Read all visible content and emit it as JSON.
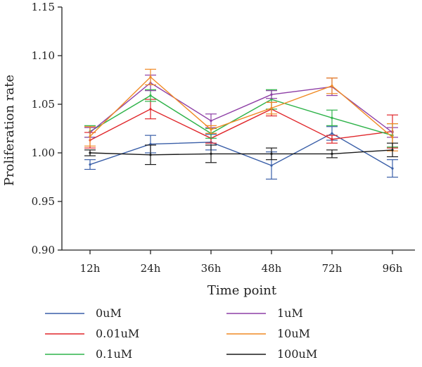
{
  "chart_data": {
    "type": "line",
    "xlabel": "Time point",
    "ylabel": "Proliferation rate",
    "ylim": [
      0.9,
      1.15
    ],
    "yticks": [
      "0.90",
      "0.95",
      "1.00",
      "1.05",
      "1.10",
      "1.15"
    ],
    "categories": [
      "12h",
      "24h",
      "36h",
      "48h",
      "72h",
      "96h"
    ],
    "error_bars": true,
    "grid": false,
    "legend_position": "bottom",
    "series": [
      {
        "name": "0uM",
        "color": "#3a5fa8",
        "values": [
          0.988,
          1.009,
          1.011,
          0.987,
          1.02,
          0.984
        ],
        "errors": [
          0.005,
          0.009,
          0.008,
          0.014,
          0.007,
          0.009
        ]
      },
      {
        "name": "0.01uM",
        "color": "#e0262a",
        "values": [
          1.013,
          1.045,
          1.015,
          1.045,
          1.014,
          1.022
        ],
        "errors": [
          0.008,
          0.01,
          0.005,
          0.007,
          0.004,
          0.017
        ]
      },
      {
        "name": "0.1uM",
        "color": "#2fb34a",
        "values": [
          1.022,
          1.059,
          1.02,
          1.055,
          1.036,
          1.018
        ],
        "errors": [
          0.006,
          0.006,
          0.005,
          0.01,
          0.008,
          0.012
        ]
      },
      {
        "name": "1uM",
        "color": "#8e3fa6",
        "values": [
          1.021,
          1.072,
          1.033,
          1.06,
          1.068,
          1.021
        ],
        "errors": [
          0.005,
          0.008,
          0.007,
          0.004,
          0.009,
          0.005
        ]
      },
      {
        "name": "10uM",
        "color": "#f08a24",
        "values": [
          1.017,
          1.078,
          1.024,
          1.046,
          1.069,
          1.016
        ],
        "errors": [
          0.01,
          0.008,
          0.004,
          0.006,
          0.008,
          0.014
        ]
      },
      {
        "name": "100uM",
        "color": "#1a1a1a",
        "values": [
          1.0,
          0.998,
          0.999,
          0.999,
          0.999,
          1.003
        ],
        "errors": [
          0.003,
          0.01,
          0.009,
          0.006,
          0.004,
          0.007
        ]
      }
    ]
  }
}
